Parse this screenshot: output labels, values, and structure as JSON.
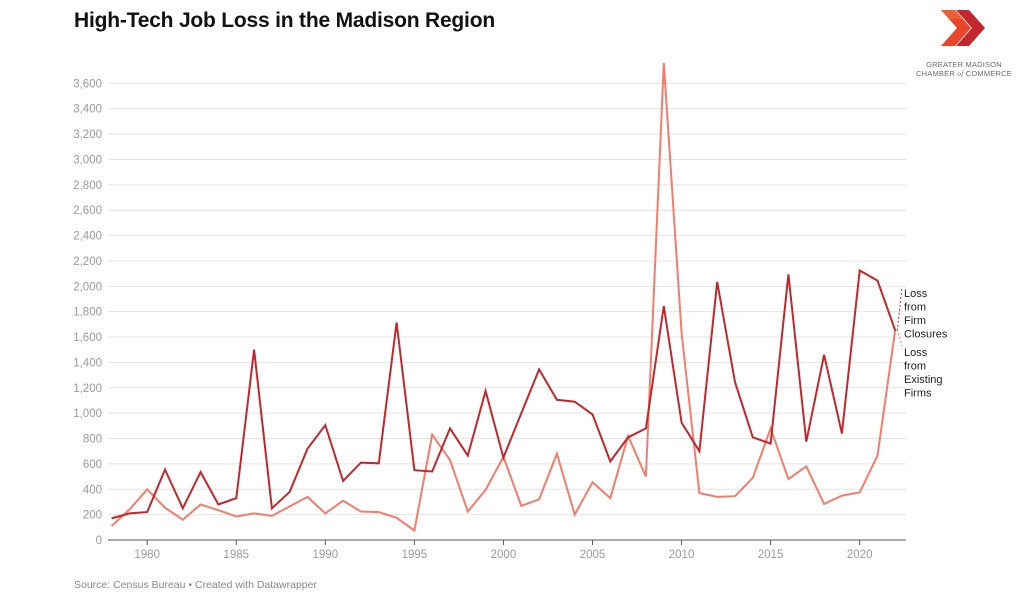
{
  "title": "High-Tech Job Loss in the Madison Region",
  "logo": {
    "line1": "GREATER MADISON",
    "line2_a": "CHAMBER ",
    "line2_of": "of",
    "line2_b": " COMMERCE"
  },
  "source": "Source: Census Bureau • Created with Datawrapper",
  "colors": {
    "closures": "#c1272d",
    "existing": "#f47c6c",
    "grid": "#e4e4e4",
    "logo_primary": "#c1272d",
    "logo_secondary": "#e8462a"
  },
  "chart_data": {
    "type": "line",
    "x": [
      1978,
      1979,
      1980,
      1981,
      1982,
      1983,
      1984,
      1985,
      1986,
      1987,
      1988,
      1989,
      1990,
      1991,
      1992,
      1993,
      1994,
      1995,
      1996,
      1997,
      1998,
      1999,
      2000,
      2001,
      2002,
      2003,
      2004,
      2005,
      2006,
      2007,
      2008,
      2009,
      2010,
      2011,
      2012,
      2013,
      2014,
      2015,
      2016,
      2017,
      2018,
      2019,
      2020,
      2021,
      2022
    ],
    "xticks": [
      1980,
      1985,
      1990,
      1995,
      2000,
      2005,
      2010,
      2015,
      2020
    ],
    "yticks": [
      0,
      200,
      400,
      600,
      800,
      1000,
      1200,
      1400,
      1600,
      1800,
      2000,
      2200,
      2400,
      2600,
      2800,
      3000,
      3200,
      3400,
      3600
    ],
    "ytick_labels": [
      "0",
      "200",
      "400",
      "600",
      "800",
      "1,000",
      "1,200",
      "1,400",
      "1,600",
      "1,800",
      "2,000",
      "2,200",
      "2,400",
      "2,600",
      "2,800",
      "3,000",
      "3,200",
      "3,400",
      "3,600"
    ],
    "xlim": [
      1977.8,
      2022.6
    ],
    "ylim": [
      0,
      3800
    ],
    "grid": true,
    "series": [
      {
        "name": "Loss from Firm Closures",
        "label_lines": [
          "Loss",
          "from",
          "Firm",
          "Closures"
        ],
        "values": [
          170,
          210,
          220,
          555,
          250,
          535,
          280,
          330,
          1500,
          250,
          380,
          720,
          905,
          465,
          610,
          605,
          1715,
          550,
          540,
          880,
          665,
          1175,
          650,
          1000,
          1345,
          1105,
          1090,
          990,
          620,
          810,
          880,
          1845,
          925,
          700,
          2035,
          1245,
          810,
          760,
          2095,
          775,
          1460,
          840,
          2125,
          2045,
          1650
        ]
      },
      {
        "name": "Loss from Existing Firms",
        "label_lines": [
          "Loss",
          "from",
          "Existing",
          "Firms"
        ],
        "values": [
          110,
          240,
          400,
          255,
          160,
          280,
          235,
          185,
          210,
          190,
          265,
          340,
          210,
          310,
          225,
          220,
          175,
          75,
          830,
          630,
          225,
          395,
          655,
          270,
          320,
          680,
          200,
          455,
          330,
          820,
          500,
          3760,
          1630,
          370,
          340,
          345,
          490,
          880,
          480,
          580,
          285,
          350,
          375,
          665,
          1660
        ]
      }
    ]
  }
}
